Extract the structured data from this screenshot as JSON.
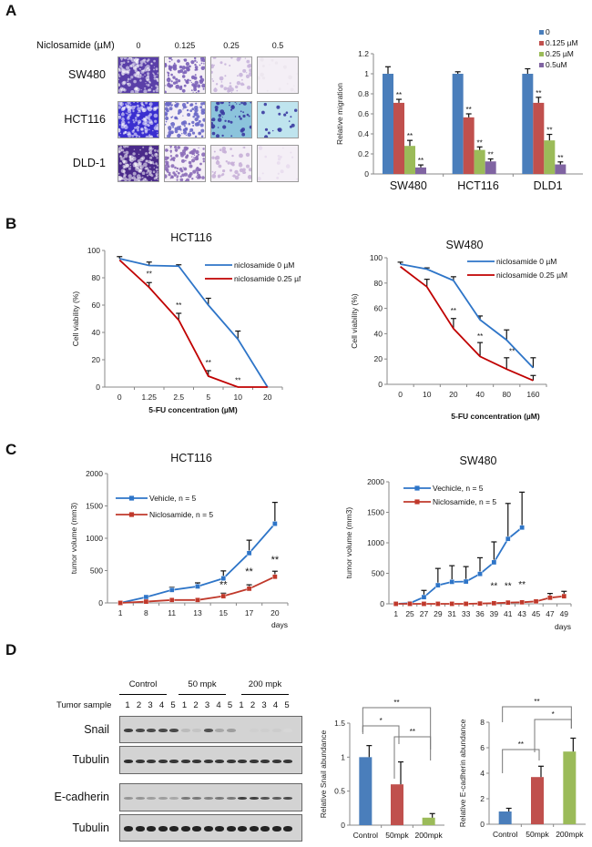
{
  "panels": {
    "A": {
      "letter": "A"
    },
    "B": {
      "letter": "B"
    },
    "C": {
      "letter": "C"
    },
    "D": {
      "letter": "D"
    }
  },
  "panelA_images": {
    "header": "Niclosamide (µM)",
    "concentrations": [
      "0",
      "0.125",
      "0.25",
      "0.5"
    ],
    "cell_lines": [
      "SW480",
      "HCT116",
      "DLD-1"
    ],
    "stain_colors": [
      [
        "#5a3fa8",
        "#7a5fb8",
        "#c8b4dc",
        "#ece6ee"
      ],
      [
        "#3a2fd0",
        "#6a68c8",
        "#8cc4dc",
        "#bfe4ee"
      ],
      [
        "#4a2a8a",
        "#8a6ab8",
        "#c8b0d8",
        "#e8dcee"
      ]
    ]
  },
  "panelD_blot": {
    "tumor_sample_label": "Tumor sample",
    "groups": [
      "Control",
      "50 mpk",
      "200 mpk"
    ],
    "lanes": [
      "1",
      "2",
      "3",
      "4",
      "5",
      "1",
      "2",
      "3",
      "4",
      "5",
      "1",
      "2",
      "3",
      "4",
      "5"
    ],
    "rows": [
      {
        "label": "Snail",
        "intensity": [
          0.8,
          0.75,
          0.75,
          0.75,
          0.75,
          0.15,
          0.1,
          0.7,
          0.25,
          0.3,
          0.02,
          0.04,
          0.05,
          0.06,
          0.0
        ]
      },
      {
        "label": "Tubulin",
        "intensity": [
          0.9,
          0.85,
          0.85,
          0.85,
          0.85,
          0.85,
          0.85,
          0.85,
          0.85,
          0.85,
          0.85,
          0.85,
          0.85,
          0.85,
          0.85
        ]
      },
      {
        "label": "E-cadherin",
        "intensity": [
          0.35,
          0.35,
          0.3,
          0.3,
          0.25,
          0.5,
          0.5,
          0.45,
          0.5,
          0.5,
          0.8,
          0.8,
          0.7,
          0.65,
          0.75
        ]
      },
      {
        "label": "Tubulin",
        "intensity": [
          0.95,
          0.95,
          0.95,
          0.95,
          0.95,
          0.95,
          0.95,
          0.95,
          0.95,
          0.95,
          0.95,
          0.95,
          0.95,
          0.95,
          0.95
        ]
      }
    ]
  },
  "chart_data": [
    {
      "id": "A-migration",
      "type": "bar",
      "title": "",
      "categories": [
        "SW480",
        "HCT116",
        "DLD1"
      ],
      "ylabel": "Relative migration",
      "xlabel": "",
      "ylim": [
        0,
        1.2
      ],
      "yticks": [
        0,
        0.2,
        0.4,
        0.6,
        0.8,
        1,
        1.2
      ],
      "ytick_labels": [
        "0",
        "0.2",
        "0.4",
        "0.6",
        "0.8",
        "1",
        "1.2"
      ],
      "legend_position": "top-right",
      "series": [
        {
          "name": "0",
          "color": "#4a7ebb",
          "values": [
            1.0,
            1.0,
            1.0
          ],
          "errors": [
            0.07,
            0.02,
            0.05
          ],
          "sig": [
            "",
            "",
            ""
          ]
        },
        {
          "name": "0.125 µM",
          "color": "#c0504d",
          "values": [
            0.71,
            0.565,
            0.71
          ],
          "errors": [
            0.035,
            0.035,
            0.055
          ],
          "sig": [
            "**",
            "**",
            "**"
          ]
        },
        {
          "name": "0.25 µM",
          "color": "#9bbb59",
          "values": [
            0.28,
            0.24,
            0.335
          ],
          "errors": [
            0.055,
            0.03,
            0.06
          ],
          "sig": [
            "**",
            "**",
            "**"
          ]
        },
        {
          "name": "0.5uM",
          "color": "#8064a2",
          "values": [
            0.065,
            0.125,
            0.095
          ],
          "errors": [
            0.025,
            0.025,
            0.025
          ],
          "sig": [
            "**",
            "**",
            "**"
          ]
        }
      ]
    },
    {
      "id": "B-HCT116",
      "type": "line",
      "title": "HCT116",
      "categories": [
        "0",
        "1.25",
        "2.5",
        "5",
        "10",
        "20"
      ],
      "xlabel": "5-FU concentration (µM)",
      "ylabel": "Cell viability (%)",
      "ylim": [
        0,
        100
      ],
      "yticks": [
        0,
        20,
        40,
        60,
        80,
        100
      ],
      "legend_position": "top-right",
      "series": [
        {
          "name": "niclosamide 0 µM",
          "color": "#2e75c8",
          "values": [
            94,
            89,
            88.5,
            60,
            35,
            0
          ],
          "errors": [
            1.5,
            2.5,
            1,
            5,
            6,
            0
          ]
        },
        {
          "name": "niclosamide 0.25 µM",
          "color": "#c00000",
          "values": [
            93,
            73,
            49,
            8,
            0,
            0
          ],
          "errors": [
            0,
            3.5,
            5,
            4,
            0,
            0
          ]
        }
      ],
      "annotations": [
        {
          "text": "**",
          "x_index": 1,
          "y": 81
        },
        {
          "text": "**",
          "x_index": 2,
          "y": 58
        },
        {
          "text": "**",
          "x_index": 3,
          "y": 16
        },
        {
          "text": "**",
          "x_index": 4,
          "y": 3
        }
      ]
    },
    {
      "id": "B-SW480",
      "type": "line",
      "title": "SW480",
      "categories": [
        "0",
        "10",
        "20",
        "40",
        "80",
        "160"
      ],
      "xlabel": "5-FU concentration (µM)",
      "ylabel": "Cell viability (%)",
      "ylim": [
        0,
        100
      ],
      "yticks": [
        0,
        20,
        40,
        60,
        80,
        100
      ],
      "legend_position": "top-right",
      "series": [
        {
          "name": "niclosamide 0 µM",
          "color": "#2e75c8",
          "values": [
            95,
            91,
            82,
            51,
            35,
            13
          ],
          "errors": [
            1.5,
            1,
            3,
            3,
            8,
            8
          ]
        },
        {
          "name": "niclosamide 0.25 µM",
          "color": "#c00000",
          "values": [
            93,
            77,
            44,
            22,
            12,
            3
          ],
          "errors": [
            0,
            6,
            8,
            11,
            9,
            4
          ]
        }
      ],
      "annotations": [
        {
          "text": "**",
          "x_index": 2,
          "y": 56
        },
        {
          "text": "**",
          "x_index": 3,
          "y": 36
        },
        {
          "text": "**",
          "x_index": 4.2,
          "y": 24
        }
      ]
    },
    {
      "id": "C-HCT116",
      "type": "line",
      "title": "HCT116",
      "categories": [
        "1",
        "8",
        "11",
        "13",
        "15",
        "17",
        "20"
      ],
      "xlabel": "days",
      "ylabel": "tumor volume (mm3)",
      "ylim": [
        0,
        2000
      ],
      "yticks": [
        0,
        500,
        1000,
        1500,
        2000
      ],
      "legend_position": "top-left",
      "series": [
        {
          "name": "Vehicle, n = 5",
          "color": "#2e75c8",
          "values": [
            0,
            90,
            200,
            255,
            380,
            770,
            1225
          ],
          "errors": [
            0,
            0,
            40,
            55,
            115,
            200,
            330
          ]
        },
        {
          "name": "Niclosamide, n = 5",
          "color": "#c0392b",
          "values": [
            0,
            20,
            45,
            45,
            105,
            220,
            405
          ],
          "errors": [
            0,
            0,
            0,
            0,
            45,
            60,
            85
          ]
        }
      ],
      "annotations": [
        {
          "text": "**",
          "x_index": 4,
          "y": 230
        },
        {
          "text": "**",
          "x_index": 5,
          "y": 440
        },
        {
          "text": "**",
          "x_index": 6,
          "y": 620
        }
      ]
    },
    {
      "id": "C-SW480",
      "type": "line",
      "title": "SW480",
      "categories": [
        "1",
        "25",
        "27",
        "29",
        "31",
        "33",
        "36",
        "39",
        "41",
        "43",
        "45",
        "47",
        "49"
      ],
      "xlabel": "days",
      "ylabel": "tumor volume (mm3)",
      "ylim": [
        0,
        2000
      ],
      "yticks": [
        0,
        500,
        1000,
        1500,
        2000
      ],
      "legend_position": "top-left",
      "series": [
        {
          "name": "Vechicle, n = 5",
          "color": "#2e75c8",
          "values": [
            0,
            10,
            110,
            305,
            360,
            365,
            490,
            680,
            1065,
            1250,
            null,
            null,
            null
          ],
          "errors": [
            0,
            0,
            110,
            275,
            265,
            245,
            265,
            335,
            580,
            580,
            0,
            0,
            0
          ]
        },
        {
          "name": "Niclosamide, n = 5",
          "color": "#c0392b",
          "values": [
            0,
            0,
            0,
            0,
            0,
            0,
            5,
            10,
            20,
            25,
            40,
            100,
            125
          ],
          "errors": [
            0,
            0,
            0,
            0,
            0,
            0,
            0,
            0,
            0,
            0,
            0,
            70,
            80
          ]
        }
      ],
      "annotations": [
        {
          "text": "**",
          "x_index": 7,
          "y": 250
        },
        {
          "text": "**",
          "x_index": 8,
          "y": 250
        },
        {
          "text": "**",
          "x_index": 9,
          "y": 270
        }
      ]
    },
    {
      "id": "D-Snail",
      "type": "bar",
      "title": "",
      "categories": [
        "Control",
        "50mpk",
        "200mpk"
      ],
      "ylabel": "Relative Snail abundance",
      "xlabel": "",
      "ylim": [
        0,
        1.5
      ],
      "yticks": [
        0,
        0.5,
        1,
        1.5
      ],
      "colors": [
        "#4a7ebb",
        "#c0504d",
        "#9bbb59"
      ],
      "values": [
        1.0,
        0.6,
        0.11
      ],
      "errors": [
        0.17,
        0.33,
        0.06
      ],
      "brackets": [
        {
          "from": 0,
          "to": 2,
          "label": "**",
          "level": 2
        },
        {
          "from": 0,
          "to": 1,
          "label": "*",
          "level": 0
        },
        {
          "from": 1,
          "to": 2,
          "label": "**",
          "level": 1
        }
      ]
    },
    {
      "id": "D-Ecadherin",
      "type": "bar",
      "title": "",
      "categories": [
        "Control",
        "50mpk",
        "200mpk"
      ],
      "ylabel": "Relative E-cadherin abundance",
      "xlabel": "",
      "ylim": [
        0,
        8
      ],
      "yticks": [
        0,
        2,
        4,
        6,
        8
      ],
      "colors": [
        "#4a7ebb",
        "#c0504d",
        "#9bbb59"
      ],
      "values": [
        1.0,
        3.7,
        5.7
      ],
      "errors": [
        0.25,
        0.85,
        1.05
      ],
      "brackets": [
        {
          "from": 0,
          "to": 2,
          "label": "**",
          "level": 2
        },
        {
          "from": 1,
          "to": 2,
          "label": "*",
          "level": 1
        },
        {
          "from": 0,
          "to": 1,
          "label": "**",
          "level": 0
        }
      ]
    }
  ]
}
